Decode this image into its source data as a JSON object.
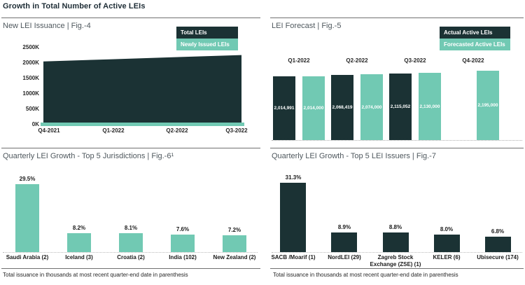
{
  "page": {
    "title": "Growth in Total Number of Active LEIs"
  },
  "colors": {
    "dark": "#1b3234",
    "teal": "#71c9b3"
  },
  "footnotes": {
    "left": "Total issuance in thousands at most recent quarter-end date in parenthesis",
    "right": "Total issuance in thousands at most recent quarter-end date in parenthesis"
  },
  "chart_data": [
    {
      "id": "fig4",
      "type": "area",
      "title": "New LEI Issuance | Fig.-4",
      "legend": [
        "Total LEIs",
        "Newly Issued LEIs"
      ],
      "x": [
        "Q4-2021",
        "Q1-2022",
        "Q2-2022",
        "Q3-2022"
      ],
      "yticks": [
        "2500K",
        "2000K",
        "1500K",
        "1000K",
        "500K",
        "0K"
      ],
      "ylim_k": [
        0,
        2500
      ],
      "grid": false,
      "legend_position": "top-right",
      "series": [
        {
          "name": "Total LEIs",
          "values_k": [
            2050,
            2120,
            2190,
            2260
          ]
        },
        {
          "name": "Newly Issued LEIs",
          "values_k": [
            60,
            60,
            65,
            65
          ]
        }
      ]
    },
    {
      "id": "fig5",
      "type": "bar",
      "title": "LEI Forecast | Fig.-5",
      "legend": [
        "Actual Active LEIs",
        "Forecasted Active LEIs"
      ],
      "categories": [
        "Q1-2022",
        "Q2-2022",
        "Q3-2022",
        "Q4-2022"
      ],
      "legend_position": "top-right",
      "grid": false,
      "series": [
        {
          "name": "Actual Active LEIs",
          "values": [
            2014991,
            2068419,
            2115052,
            null
          ]
        },
        {
          "name": "Forecasted Active LEIs",
          "values": [
            2014000,
            2074000,
            2130000,
            2195000
          ]
        }
      ]
    },
    {
      "id": "fig6",
      "type": "bar",
      "title": "Quarterly LEI Growth - Top 5 Jurisdictions | Fig.-6¹",
      "categories": [
        "Saudi Arabia (2)",
        "Iceland (3)",
        "Croatia (2)",
        "India (102)",
        "New Zealand (2)"
      ],
      "values_pct": [
        29.5,
        8.2,
        8.1,
        7.6,
        7.2
      ],
      "ylim_pct": [
        0,
        31
      ],
      "grid": false
    },
    {
      "id": "fig7",
      "type": "bar",
      "title": "Quarterly LEI Growth - Top 5 LEI Issuers | Fig.-7",
      "categories": [
        "SACB /Moarif (1)",
        "NordLEI (29)",
        "Zagreb Stock Exchange (ZSE) (1)",
        "KELER (6)",
        "Ubisecure (174)"
      ],
      "values_pct": [
        31.3,
        8.9,
        8.8,
        8.0,
        6.8
      ],
      "ylim_pct": [
        0,
        33
      ],
      "grid": false
    }
  ]
}
